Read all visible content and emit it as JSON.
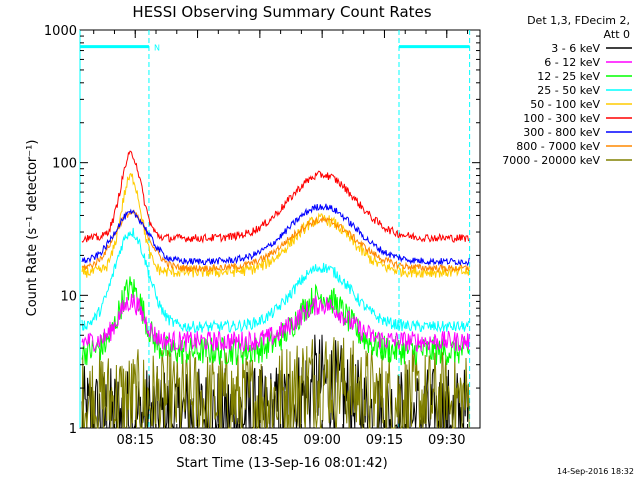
{
  "chart_data": {
    "type": "line",
    "title": "HESSI Observing Summary Count Rates",
    "xlabel": "Start Time (13-Sep-16 08:01:42)",
    "ylabel": "Count Rate (s⁻¹ detector⁻¹)",
    "yscale": "log",
    "ylim": [
      1,
      1000
    ],
    "xlim_minutes": [
      481.7,
      578
    ],
    "x_ticks": [
      {
        "label": "08:15",
        "minute": 495
      },
      {
        "label": "08:30",
        "minute": 510
      },
      {
        "label": "08:45",
        "minute": 525
      },
      {
        "label": "09:00",
        "minute": 540
      },
      {
        "label": "09:15",
        "minute": 555
      },
      {
        "label": "09:30",
        "minute": 570
      }
    ],
    "y_ticks": [
      {
        "label": "1",
        "value": 1
      },
      {
        "label": "10",
        "value": 10
      },
      {
        "label": "100",
        "value": 100
      },
      {
        "label": "1000",
        "value": 1000
      }
    ],
    "legend_header": [
      "Det 1,3, FDecim 2,",
      "Att 0"
    ],
    "legend_placement": "right",
    "grid": false,
    "night_marker_label": "N",
    "night_intervals": [
      [
        481.7,
        498.3
      ],
      [
        558.5,
        575.5
      ]
    ],
    "series": [
      {
        "name": "3 - 6 keV",
        "color": "#000000",
        "base": 1.2,
        "peaks": [
          [
            540,
            1.8,
            5
          ]
        ],
        "noise": 0.9
      },
      {
        "name": "6 - 12 keV",
        "color": "#ff00ff",
        "base": 4.5,
        "peaks": [
          [
            494,
            2.0,
            3
          ],
          [
            540,
            1.9,
            6
          ]
        ],
        "noise": 0.18
      },
      {
        "name": "12 - 25 keV",
        "color": "#00ff00",
        "base": 3.8,
        "peaks": [
          [
            494,
            3.0,
            3
          ],
          [
            540,
            2.6,
            6
          ]
        ],
        "noise": 0.25
      },
      {
        "name": "25 - 50 keV",
        "color": "#00ffff",
        "base": 5.8,
        "peaks": [
          [
            494,
            5.2,
            4
          ],
          [
            540,
            2.8,
            7
          ]
        ],
        "noise": 0.1
      },
      {
        "name": "50 - 100 keV",
        "color": "#ffcc00",
        "base": 15,
        "peaks": [
          [
            494,
            5.2,
            2.5
          ],
          [
            540,
            2.5,
            7
          ]
        ],
        "noise": 0.1
      },
      {
        "name": "100 - 300 keV",
        "color": "#ff0000",
        "base": 27,
        "peaks": [
          [
            494,
            4.3,
            2.5
          ],
          [
            540,
            3.0,
            8
          ]
        ],
        "noise": 0.07
      },
      {
        "name": "300 - 800 keV",
        "color": "#0000ff",
        "base": 18,
        "peaks": [
          [
            494,
            2.3,
            4
          ],
          [
            540,
            2.6,
            8
          ]
        ],
        "noise": 0.06
      },
      {
        "name": "800 - 7000 keV",
        "color": "#ff8800",
        "base": 16,
        "peaks": [
          [
            494,
            2.6,
            4
          ],
          [
            540,
            2.3,
            8
          ]
        ],
        "noise": 0.06
      },
      {
        "name": "7000 - 20000 keV",
        "color": "#808000",
        "base": 1.6,
        "peaks": [
          [
            540,
            1.5,
            6
          ]
        ],
        "noise": 0.9
      }
    ]
  },
  "timestamp": "14-Sep-2016 18:32"
}
